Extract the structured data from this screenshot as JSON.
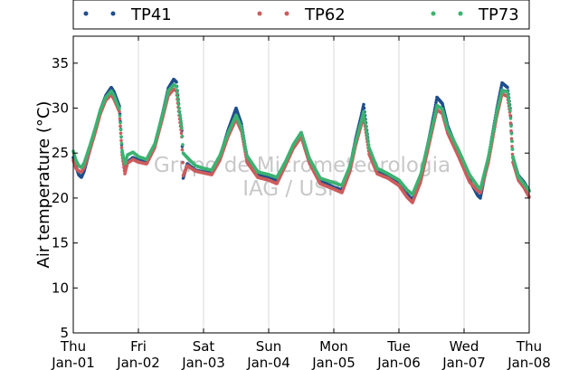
{
  "chart_data": {
    "type": "scatter",
    "ylabel": "Air temperature (°C)",
    "xlabel": "",
    "ylim": [
      5,
      38
    ],
    "yticks": [
      5,
      10,
      15,
      20,
      25,
      30,
      35
    ],
    "xlim": [
      "2015-01-01",
      "2015-01-08"
    ],
    "xtick_labels": [
      {
        "day": "Thu",
        "date": "Jan-01"
      },
      {
        "day": "Fri",
        "date": "Jan-02"
      },
      {
        "day": "Sat",
        "date": "Jan-03"
      },
      {
        "day": "Sun",
        "date": "Jan-04"
      },
      {
        "day": "Mon",
        "date": "Jan-05"
      },
      {
        "day": "Tue",
        "date": "Jan-06"
      },
      {
        "day": "Wed",
        "date": "Jan-07"
      },
      {
        "day": "Thu",
        "date": "Jan-08"
      }
    ],
    "grid": "vertical",
    "legend_placement": "top, outside plot",
    "watermark": [
      "Grupo de Micrometeorologia",
      "IAG / USP"
    ],
    "series": [
      {
        "name": "TP41",
        "color": "#1f4e8c",
        "points": [
          [
            "2015-01-01 00:00",
            24.5
          ],
          [
            "2015-01-01 01:00",
            23.5
          ],
          [
            "2015-01-01 02:00",
            22.6
          ],
          [
            "2015-01-01 03:00",
            22.3
          ],
          [
            "2015-01-01 04:00",
            23.0
          ],
          [
            "2015-01-01 06:00",
            25.2
          ],
          [
            "2015-01-01 08:00",
            27.5
          ],
          [
            "2015-01-01 10:00",
            29.8
          ],
          [
            "2015-01-01 12:00",
            31.4
          ],
          [
            "2015-01-01 14:00",
            32.3
          ],
          [
            "2015-01-01 15:00",
            31.8
          ],
          [
            "2015-01-01 16:00",
            31.0
          ],
          [
            "2015-01-01 17:00",
            30.2
          ],
          [
            "2015-01-01 18:00",
            25.1
          ],
          [
            "2015-01-01 19:00",
            23.0
          ],
          [
            "2015-01-01 20:00",
            24.0
          ],
          [
            "2015-01-01 22:00",
            24.5
          ],
          [
            "2015-01-02 00:00",
            24.2
          ],
          [
            "2015-01-02 03:00",
            23.9
          ],
          [
            "2015-01-02 06:00",
            25.8
          ],
          [
            "2015-01-02 09:00",
            29.5
          ],
          [
            "2015-01-02 11:00",
            32.2
          ],
          [
            "2015-01-02 13:00",
            33.2
          ],
          [
            "2015-01-02 14:00",
            32.9
          ],
          [
            "2015-01-02 15:00",
            30.0
          ],
          [
            "2015-01-02 16:00",
            27.5
          ],
          [
            "2015-01-02 16:30",
            22.2
          ],
          [
            "2015-01-02 18:00",
            23.8
          ],
          [
            "2015-01-02 21:00",
            23.1
          ],
          [
            "2015-01-03 00:00",
            22.9
          ],
          [
            "2015-01-03 03:00",
            22.8
          ],
          [
            "2015-01-03 06:00",
            24.5
          ],
          [
            "2015-01-03 09:00",
            27.5
          ],
          [
            "2015-01-03 12:00",
            30.0
          ],
          [
            "2015-01-03 14:00",
            28.2
          ],
          [
            "2015-01-03 16:00",
            24.5
          ],
          [
            "2015-01-03 20:00",
            22.6
          ],
          [
            "2015-01-04 00:00",
            22.3
          ],
          [
            "2015-01-04 03:00",
            22.0
          ],
          [
            "2015-01-04 06:00",
            23.8
          ],
          [
            "2015-01-04 09:00",
            25.8
          ],
          [
            "2015-01-04 12:00",
            27.2
          ],
          [
            "2015-01-04 15:00",
            24.2
          ],
          [
            "2015-01-04 19:00",
            21.9
          ],
          [
            "2015-01-05 00:00",
            21.2
          ],
          [
            "2015-01-05 03:00",
            20.9
          ],
          [
            "2015-01-05 06:00",
            23.5
          ],
          [
            "2015-01-05 08:00",
            26.5
          ],
          [
            "2015-01-05 10:00",
            29.0
          ],
          [
            "2015-01-05 11:00",
            30.4
          ],
          [
            "2015-01-05 13:00",
            25.5
          ],
          [
            "2015-01-05 16:00",
            23.0
          ],
          [
            "2015-01-05 20:00",
            22.5
          ],
          [
            "2015-01-06 00:00",
            21.7
          ],
          [
            "2015-01-06 03:00",
            20.4
          ],
          [
            "2015-01-06 05:00",
            19.8
          ],
          [
            "2015-01-06 08:00",
            22.2
          ],
          [
            "2015-01-06 11:00",
            26.5
          ],
          [
            "2015-01-06 13:00",
            29.5
          ],
          [
            "2015-01-06 14:00",
            31.2
          ],
          [
            "2015-01-06 16:00",
            30.5
          ],
          [
            "2015-01-06 18:00",
            28.0
          ],
          [
            "2015-01-06 22:00",
            25.0
          ],
          [
            "2015-01-07 02:00",
            22.0
          ],
          [
            "2015-01-07 05:00",
            20.3
          ],
          [
            "2015-01-07 06:00",
            20.0
          ],
          [
            "2015-01-07 09:00",
            24.5
          ],
          [
            "2015-01-07 12:00",
            29.8
          ],
          [
            "2015-01-07 14:00",
            32.8
          ],
          [
            "2015-01-07 16:00",
            32.3
          ],
          [
            "2015-01-07 17:00",
            30.0
          ],
          [
            "2015-01-07 18:00",
            24.5
          ],
          [
            "2015-01-07 20:00",
            22.5
          ],
          [
            "2015-01-07 22:00",
            21.8
          ],
          [
            "2015-01-08 00:00",
            20.8
          ]
        ]
      },
      {
        "name": "TP62",
        "color": "#cd5c5c",
        "points": [
          [
            "2015-01-01 00:00",
            24.2
          ],
          [
            "2015-01-01 01:00",
            23.3
          ],
          [
            "2015-01-01 02:00",
            23.0
          ],
          [
            "2015-01-01 03:00",
            22.9
          ],
          [
            "2015-01-01 04:00",
            23.4
          ],
          [
            "2015-01-01 06:00",
            25.2
          ],
          [
            "2015-01-01 08:00",
            27.2
          ],
          [
            "2015-01-01 10:00",
            29.4
          ],
          [
            "2015-01-01 12:00",
            30.9
          ],
          [
            "2015-01-01 14:00",
            31.5
          ],
          [
            "2015-01-01 15:00",
            31.0
          ],
          [
            "2015-01-01 16:00",
            30.3
          ],
          [
            "2015-01-01 17:00",
            29.6
          ],
          [
            "2015-01-01 18:00",
            24.8
          ],
          [
            "2015-01-01 19:00",
            22.7
          ],
          [
            "2015-01-01 20:00",
            23.9
          ],
          [
            "2015-01-01 22:00",
            24.3
          ],
          [
            "2015-01-02 00:00",
            24.0
          ],
          [
            "2015-01-02 03:00",
            23.8
          ],
          [
            "2015-01-02 06:00",
            25.6
          ],
          [
            "2015-01-02 09:00",
            29.0
          ],
          [
            "2015-01-02 11:00",
            31.4
          ],
          [
            "2015-01-02 13:00",
            32.1
          ],
          [
            "2015-01-02 14:00",
            31.9
          ],
          [
            "2015-01-02 15:00",
            29.2
          ],
          [
            "2015-01-02 16:00",
            26.8
          ],
          [
            "2015-01-02 16:30",
            22.5
          ],
          [
            "2015-01-02 18:00",
            23.6
          ],
          [
            "2015-01-02 21:00",
            23.0
          ],
          [
            "2015-01-03 00:00",
            22.8
          ],
          [
            "2015-01-03 03:00",
            22.6
          ],
          [
            "2015-01-03 06:00",
            24.2
          ],
          [
            "2015-01-03 09:00",
            26.8
          ],
          [
            "2015-01-03 12:00",
            28.8
          ],
          [
            "2015-01-03 14:00",
            27.4
          ],
          [
            "2015-01-03 16:00",
            24.0
          ],
          [
            "2015-01-03 20:00",
            22.3
          ],
          [
            "2015-01-04 00:00",
            22.0
          ],
          [
            "2015-01-04 03:00",
            21.6
          ],
          [
            "2015-01-04 06:00",
            23.5
          ],
          [
            "2015-01-04 09:00",
            25.5
          ],
          [
            "2015-01-04 12:00",
            26.8
          ],
          [
            "2015-01-04 15:00",
            23.9
          ],
          [
            "2015-01-04 19:00",
            21.6
          ],
          [
            "2015-01-05 00:00",
            21.0
          ],
          [
            "2015-01-05 03:00",
            20.6
          ],
          [
            "2015-01-05 06:00",
            23.0
          ],
          [
            "2015-01-05 08:00",
            25.8
          ],
          [
            "2015-01-05 10:00",
            28.0
          ],
          [
            "2015-01-05 11:00",
            29.0
          ],
          [
            "2015-01-05 13:00",
            24.9
          ],
          [
            "2015-01-05 16:00",
            22.7
          ],
          [
            "2015-01-05 20:00",
            22.2
          ],
          [
            "2015-01-06 00:00",
            21.4
          ],
          [
            "2015-01-06 03:00",
            20.1
          ],
          [
            "2015-01-06 05:00",
            19.5
          ],
          [
            "2015-01-06 08:00",
            21.8
          ],
          [
            "2015-01-06 11:00",
            25.8
          ],
          [
            "2015-01-06 13:00",
            28.5
          ],
          [
            "2015-01-06 14:00",
            29.8
          ],
          [
            "2015-01-06 16:00",
            29.4
          ],
          [
            "2015-01-06 18:00",
            27.2
          ],
          [
            "2015-01-06 22:00",
            24.6
          ],
          [
            "2015-01-07 02:00",
            21.8
          ],
          [
            "2015-01-07 05:00",
            20.8
          ],
          [
            "2015-01-07 06:00",
            20.6
          ],
          [
            "2015-01-07 09:00",
            24.0
          ],
          [
            "2015-01-07 12:00",
            29.0
          ],
          [
            "2015-01-07 14:00",
            31.6
          ],
          [
            "2015-01-07 16:00",
            31.3
          ],
          [
            "2015-01-07 17:00",
            29.2
          ],
          [
            "2015-01-07 18:00",
            24.0
          ],
          [
            "2015-01-07 20:00",
            22.0
          ],
          [
            "2015-01-07 22:00",
            21.2
          ],
          [
            "2015-01-08 00:00",
            20.1
          ]
        ]
      },
      {
        "name": "TP73",
        "color": "#3cb371",
        "points": [
          [
            "2015-01-01 00:00",
            25.2
          ],
          [
            "2015-01-01 01:00",
            24.2
          ],
          [
            "2015-01-01 02:00",
            23.6
          ],
          [
            "2015-01-01 03:00",
            23.4
          ],
          [
            "2015-01-01 04:00",
            23.9
          ],
          [
            "2015-01-01 06:00",
            25.7
          ],
          [
            "2015-01-01 08:00",
            27.7
          ],
          [
            "2015-01-01 10:00",
            29.8
          ],
          [
            "2015-01-01 12:00",
            31.2
          ],
          [
            "2015-01-01 14:00",
            31.9
          ],
          [
            "2015-01-01 15:00",
            31.4
          ],
          [
            "2015-01-01 16:00",
            30.6
          ],
          [
            "2015-01-01 17:00",
            29.9
          ],
          [
            "2015-01-01 18:00",
            25.3
          ],
          [
            "2015-01-01 19:00",
            23.8
          ],
          [
            "2015-01-01 20:00",
            24.8
          ],
          [
            "2015-01-01 22:00",
            25.1
          ],
          [
            "2015-01-02 00:00",
            24.6
          ],
          [
            "2015-01-02 03:00",
            24.3
          ],
          [
            "2015-01-02 06:00",
            26.0
          ],
          [
            "2015-01-02 09:00",
            29.4
          ],
          [
            "2015-01-02 11:00",
            31.9
          ],
          [
            "2015-01-02 13:00",
            32.6
          ],
          [
            "2015-01-02 14:00",
            32.4
          ],
          [
            "2015-01-02 15:00",
            30.0
          ],
          [
            "2015-01-02 16:00",
            27.8
          ],
          [
            "2015-01-02 16:30",
            25.0
          ],
          [
            "2015-01-02 18:00",
            24.5
          ],
          [
            "2015-01-02 21:00",
            23.6
          ],
          [
            "2015-01-03 00:00",
            23.3
          ],
          [
            "2015-01-03 03:00",
            23.1
          ],
          [
            "2015-01-03 06:00",
            24.7
          ],
          [
            "2015-01-03 09:00",
            27.2
          ],
          [
            "2015-01-03 12:00",
            29.2
          ],
          [
            "2015-01-03 14:00",
            27.8
          ],
          [
            "2015-01-03 16:00",
            24.7
          ],
          [
            "2015-01-03 20:00",
            22.9
          ],
          [
            "2015-01-04 00:00",
            22.6
          ],
          [
            "2015-01-04 03:00",
            22.3
          ],
          [
            "2015-01-04 06:00",
            23.9
          ],
          [
            "2015-01-04 09:00",
            25.9
          ],
          [
            "2015-01-04 12:00",
            27.3
          ],
          [
            "2015-01-04 15:00",
            24.4
          ],
          [
            "2015-01-04 19:00",
            22.2
          ],
          [
            "2015-01-05 00:00",
            21.7
          ],
          [
            "2015-01-05 03:00",
            21.4
          ],
          [
            "2015-01-05 06:00",
            23.6
          ],
          [
            "2015-01-05 08:00",
            26.2
          ],
          [
            "2015-01-05 10:00",
            28.4
          ],
          [
            "2015-01-05 11:00",
            29.6
          ],
          [
            "2015-01-05 13:00",
            25.6
          ],
          [
            "2015-01-05 16:00",
            23.3
          ],
          [
            "2015-01-05 20:00",
            22.7
          ],
          [
            "2015-01-06 00:00",
            22.0
          ],
          [
            "2015-01-06 03:00",
            20.9
          ],
          [
            "2015-01-06 05:00",
            20.4
          ],
          [
            "2015-01-06 08:00",
            22.6
          ],
          [
            "2015-01-06 11:00",
            26.4
          ],
          [
            "2015-01-06 13:00",
            28.9
          ],
          [
            "2015-01-06 14:00",
            30.3
          ],
          [
            "2015-01-06 16:00",
            29.9
          ],
          [
            "2015-01-06 18:00",
            27.7
          ],
          [
            "2015-01-06 22:00",
            25.3
          ],
          [
            "2015-01-07 02:00",
            22.6
          ],
          [
            "2015-01-07 05:00",
            21.3
          ],
          [
            "2015-01-07 06:00",
            21.0
          ],
          [
            "2015-01-07 09:00",
            24.6
          ],
          [
            "2015-01-07 12:00",
            29.5
          ],
          [
            "2015-01-07 14:00",
            32.0
          ],
          [
            "2015-01-07 16:00",
            31.8
          ],
          [
            "2015-01-07 17:00",
            29.7
          ],
          [
            "2015-01-07 18:00",
            24.6
          ],
          [
            "2015-01-07 20:00",
            22.4
          ],
          [
            "2015-01-07 22:00",
            21.6
          ],
          [
            "2015-01-08 00:00",
            20.8
          ]
        ]
      }
    ]
  }
}
